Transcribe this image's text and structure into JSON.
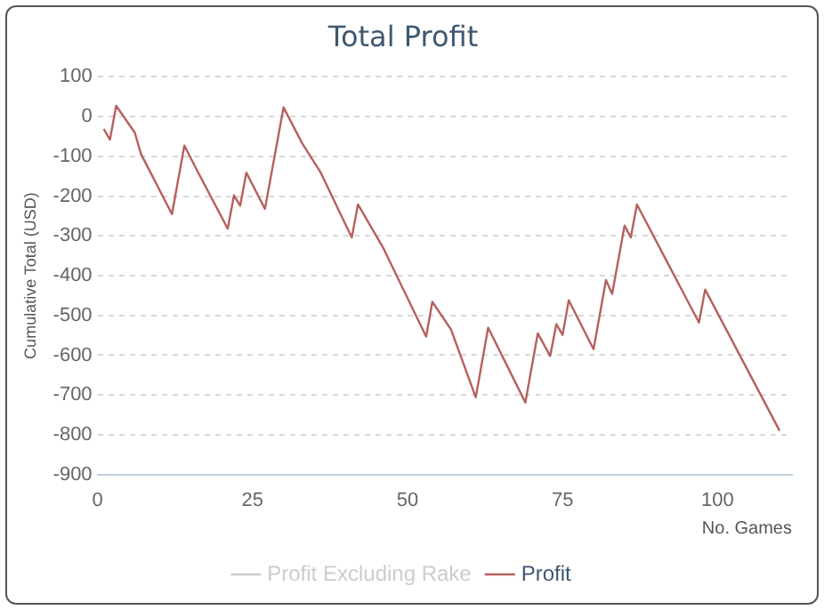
{
  "chart_data": {
    "type": "line",
    "title": "Total Profit",
    "xlabel": "No. Games",
    "ylabel": "Cumulative Total (USD)",
    "series": [
      {
        "name": "Profit Excluding Rake",
        "color": "#cccccc"
      },
      {
        "name": "Profit",
        "color": "#b5605e",
        "x": [
          1,
          2,
          3,
          6,
          7,
          12,
          14,
          16,
          21,
          22,
          23,
          24,
          27,
          30,
          33,
          36,
          41,
          42,
          46,
          53,
          54,
          57,
          61,
          63,
          69,
          71,
          73,
          74,
          75,
          76,
          80,
          82,
          83,
          85,
          86,
          87,
          97,
          98,
          110
        ],
        "values": [
          -31,
          -58,
          27,
          -40,
          -94,
          -245,
          -73,
          -134,
          -282,
          -198,
          -224,
          -141,
          -232,
          23,
          -67,
          -141,
          -304,
          -221,
          -328,
          -553,
          -466,
          -535,
          -706,
          -531,
          -719,
          -545,
          -602,
          -522,
          -549,
          -462,
          -585,
          -411,
          -446,
          -274,
          -304,
          -221,
          -518,
          -435,
          -790
        ]
      }
    ],
    "xlim": [
      0,
      112
    ],
    "xticks": [
      0,
      25,
      50,
      75,
      100
    ],
    "ylim": [
      -900,
      100
    ],
    "yticks": [
      -900,
      -800,
      -700,
      -600,
      -500,
      -400,
      -300,
      -200,
      -100,
      0,
      100
    ],
    "grid": "y",
    "legend": "bottom",
    "marker": "none",
    "line_style": "solid"
  }
}
